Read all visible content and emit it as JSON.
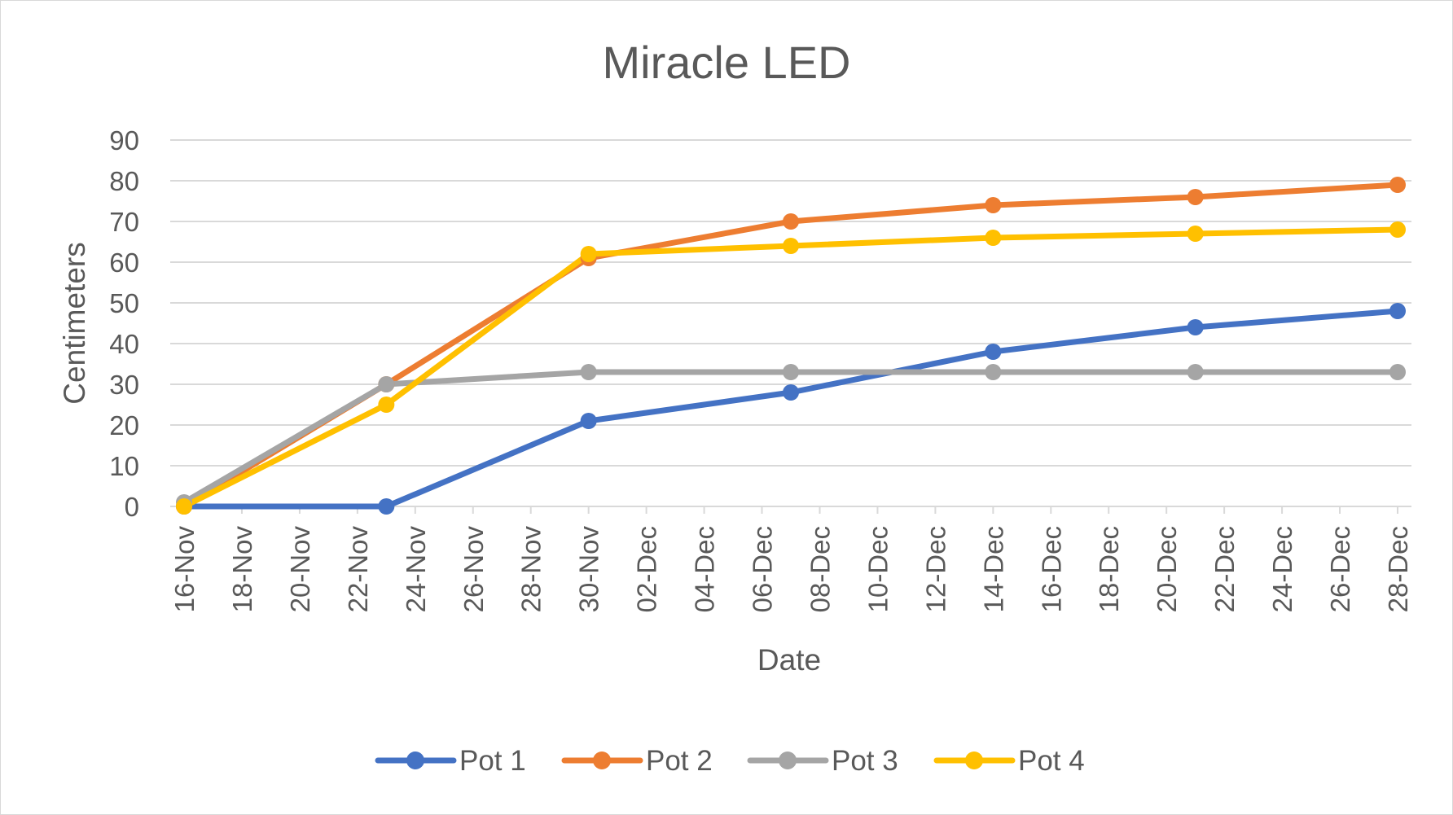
{
  "chart_data": {
    "type": "line",
    "title": "Miracle LED",
    "xlabel": "Date",
    "ylabel": "Centimeters",
    "ylim": [
      0,
      90
    ],
    "yticks": [
      "0",
      "10",
      "20",
      "30",
      "40",
      "50",
      "60",
      "70",
      "80",
      "90"
    ],
    "x_tick_labels": [
      "16-Nov",
      "18-Nov",
      "20-Nov",
      "22-Nov",
      "24-Nov",
      "26-Nov",
      "28-Nov",
      "30-Nov",
      "02-Dec",
      "04-Dec",
      "06-Dec",
      "08-Dec",
      "10-Dec",
      "12-Dec",
      "14-Dec",
      "16-Dec",
      "18-Dec",
      "20-Dec",
      "22-Dec",
      "24-Dec",
      "26-Dec",
      "28-Dec"
    ],
    "x": [
      "16-Nov",
      "23-Nov",
      "30-Nov",
      "07-Dec",
      "14-Dec",
      "21-Dec",
      "28-Dec"
    ],
    "series": [
      {
        "name": "Pot 1",
        "color": "#4472C4",
        "values": [
          0,
          0,
          21,
          28,
          38,
          44,
          48
        ]
      },
      {
        "name": "Pot 2",
        "color": "#ED7D31",
        "values": [
          0,
          30,
          61,
          70,
          74,
          76,
          79
        ]
      },
      {
        "name": "Pot 3",
        "color": "#A5A5A5",
        "values": [
          1,
          30,
          33,
          33,
          33,
          33,
          33
        ]
      },
      {
        "name": "Pot 4",
        "color": "#FFC000",
        "values": [
          0,
          25,
          62,
          64,
          66,
          67,
          68
        ]
      }
    ],
    "grid": "horizontal",
    "legend_position": "bottom"
  }
}
